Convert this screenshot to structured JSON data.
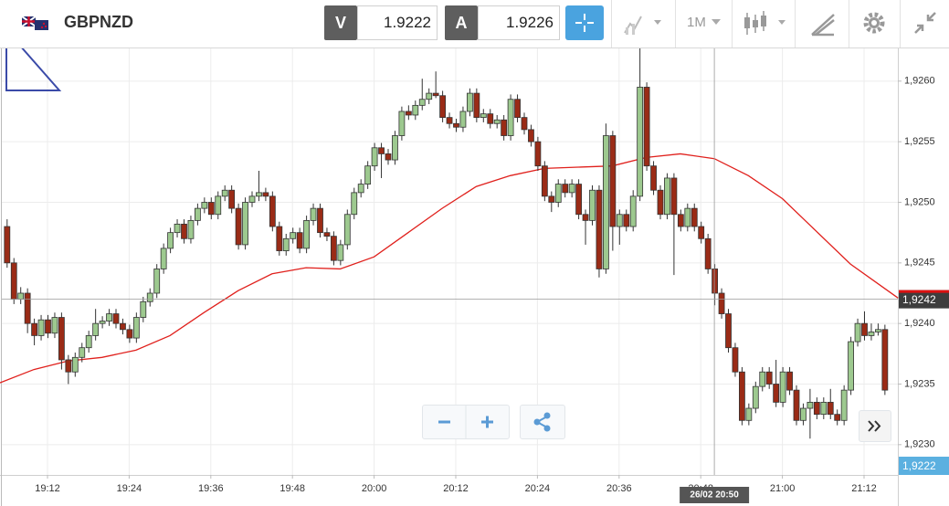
{
  "header": {
    "symbol": "GBPNZD",
    "sell_label": "V",
    "sell_price": "1.9222",
    "buy_label": "A",
    "buy_price": "1.9226",
    "timeframe": "1M"
  },
  "chart_data": {
    "type": "candlestick",
    "up_color": "#9dc98f",
    "down_color": "#9a2b16",
    "x": [
      "19:06",
      "19:07",
      "19:08",
      "19:09",
      "19:10",
      "19:11",
      "19:12",
      "19:13",
      "19:14",
      "19:15",
      "19:16",
      "19:17",
      "19:18",
      "19:19",
      "19:20",
      "19:21",
      "19:22",
      "19:23",
      "19:24",
      "19:25",
      "19:26",
      "19:27",
      "19:28",
      "19:29",
      "19:30",
      "19:31",
      "19:32",
      "19:33",
      "19:34",
      "19:35",
      "19:36",
      "19:37",
      "19:38",
      "19:39",
      "19:40",
      "19:41",
      "19:42",
      "19:43",
      "19:44",
      "19:45",
      "19:46",
      "19:47",
      "19:48",
      "19:49",
      "19:50",
      "19:51",
      "19:52",
      "19:53",
      "19:54",
      "19:55",
      "19:56",
      "19:57",
      "19:58",
      "19:59",
      "20:00",
      "20:01",
      "20:02",
      "20:03",
      "20:04",
      "20:05",
      "20:06",
      "20:07",
      "20:08",
      "20:09",
      "20:10",
      "20:11",
      "20:12",
      "20:13",
      "20:14",
      "20:15",
      "20:16",
      "20:17",
      "20:18",
      "20:19",
      "20:20",
      "20:21",
      "20:22",
      "20:23",
      "20:24",
      "20:25",
      "20:26",
      "20:27",
      "20:28",
      "20:29",
      "20:30",
      "20:31",
      "20:32",
      "20:33",
      "20:34",
      "20:35",
      "20:36",
      "20:37",
      "20:38",
      "20:39",
      "20:40",
      "20:41",
      "20:42",
      "20:43",
      "20:44",
      "20:45",
      "20:46",
      "20:47",
      "20:48",
      "20:49",
      "20:50",
      "20:51",
      "20:52",
      "20:53",
      "20:54",
      "20:55",
      "20:56",
      "20:57",
      "20:58",
      "20:59",
      "21:00",
      "21:01",
      "21:02",
      "21:03",
      "21:04",
      "21:05",
      "21:06",
      "21:07",
      "21:08",
      "21:09",
      "21:10",
      "21:11",
      "21:12",
      "21:13",
      "21:14",
      "21:15"
    ],
    "open": [
      1.9248,
      1.9245,
      1.9242,
      1.92425,
      1.924,
      1.9239,
      1.92403,
      1.92392,
      1.92405,
      1.9237,
      1.9236,
      1.92372,
      1.9238,
      1.9239,
      1.924,
      1.92402,
      1.92408,
      1.924,
      1.92395,
      1.92388,
      1.92405,
      1.92418,
      1.92425,
      1.92445,
      1.92462,
      1.92475,
      1.92482,
      1.9247,
      1.92485,
      1.92495,
      1.925,
      1.9249,
      1.92505,
      1.9251,
      1.92495,
      1.92465,
      1.925,
      1.92505,
      1.92508,
      1.92505,
      1.9248,
      1.9246,
      1.9247,
      1.92475,
      1.92462,
      1.92485,
      1.92495,
      1.92475,
      1.92472,
      1.92452,
      1.92465,
      1.9249,
      1.92508,
      1.92515,
      1.9253,
      1.92545,
      1.9254,
      1.92535,
      1.92555,
      1.92575,
      1.92572,
      1.9258,
      1.92585,
      1.9259,
      1.92588,
      1.9257,
      1.92565,
      1.92562,
      1.92575,
      1.9259,
      1.9257,
      1.92573,
      1.92565,
      1.92568,
      1.92555,
      1.92585,
      1.9257,
      1.9256,
      1.9255,
      1.9253,
      1.92505,
      1.925,
      1.92515,
      1.92508,
      1.92515,
      1.9249,
      1.92485,
      1.9251,
      1.92445,
      1.92555,
      1.9248,
      1.9249,
      1.9248,
      1.92505,
      1.92595,
      1.9253,
      1.9251,
      1.9249,
      1.9252,
      1.9249,
      1.9248,
      1.92495,
      1.9248,
      1.9247,
      1.92445,
      1.92425,
      1.92408,
      1.9238,
      1.9236,
      1.9232,
      1.9233,
      1.92348,
      1.9236,
      1.9235,
      1.92335,
      1.9236,
      1.92345,
      1.9232,
      1.9233,
      1.92335,
      1.92325,
      1.92335,
      1.92325,
      1.9232,
      1.92345,
      1.92385,
      1.924,
      1.9239,
      1.92393,
      1.92395
    ],
    "high": [
      1.92486,
      1.92454,
      1.9243,
      1.92429,
      1.92404,
      1.92407,
      1.92407,
      1.92409,
      1.92409,
      1.92374,
      1.92376,
      1.92384,
      1.92394,
      1.92412,
      1.92406,
      1.92412,
      1.92412,
      1.92404,
      1.92399,
      1.92409,
      1.92422,
      1.92429,
      1.92449,
      1.92466,
      1.92479,
      1.92486,
      1.92486,
      1.92489,
      1.92499,
      1.92504,
      1.92504,
      1.92509,
      1.92514,
      1.92514,
      1.92499,
      1.92504,
      1.92509,
      1.92526,
      1.92512,
      1.92509,
      1.92484,
      1.92474,
      1.92479,
      1.92479,
      1.92489,
      1.92499,
      1.92499,
      1.92479,
      1.92476,
      1.92469,
      1.92494,
      1.92512,
      1.92519,
      1.92534,
      1.92549,
      1.92549,
      1.92544,
      1.92559,
      1.92579,
      1.9258,
      1.92584,
      1.92602,
      1.92594,
      1.92608,
      1.92592,
      1.92574,
      1.92569,
      1.92579,
      1.92594,
      1.92594,
      1.92577,
      1.92577,
      1.92572,
      1.92572,
      1.92589,
      1.92589,
      1.92574,
      1.92564,
      1.92554,
      1.92534,
      1.92509,
      1.92519,
      1.92519,
      1.92519,
      1.92519,
      1.92494,
      1.92514,
      1.92514,
      1.92565,
      1.92559,
      1.92494,
      1.92494,
      1.9251,
      1.92628,
      1.92599,
      1.92534,
      1.92514,
      1.92524,
      1.92524,
      1.92494,
      1.92499,
      1.92499,
      1.92484,
      1.92474,
      1.92449,
      1.92429,
      1.92412,
      1.92384,
      1.92364,
      1.92334,
      1.92352,
      1.92364,
      1.92364,
      1.9237,
      1.92364,
      1.92364,
      1.92349,
      1.92334,
      1.92346,
      1.92339,
      1.92339,
      1.92346,
      1.92329,
      1.92349,
      1.92389,
      1.92404,
      1.9241,
      1.924,
      1.924,
      1.92399
    ],
    "low": [
      1.92446,
      1.92416,
      1.92416,
      1.92392,
      1.92382,
      1.92386,
      1.92388,
      1.92388,
      1.92362,
      1.9235,
      1.92356,
      1.92368,
      1.92376,
      1.92386,
      1.92396,
      1.92398,
      1.92396,
      1.92391,
      1.92384,
      1.92384,
      1.92401,
      1.92414,
      1.92421,
      1.92441,
      1.92458,
      1.92471,
      1.92466,
      1.92466,
      1.92481,
      1.92491,
      1.92486,
      1.92486,
      1.92501,
      1.92491,
      1.92461,
      1.92461,
      1.92496,
      1.92501,
      1.92501,
      1.92476,
      1.92456,
      1.92456,
      1.92466,
      1.92458,
      1.92458,
      1.92481,
      1.92471,
      1.92468,
      1.92448,
      1.92448,
      1.92461,
      1.92486,
      1.92504,
      1.92511,
      1.92526,
      1.9252,
      1.92531,
      1.92531,
      1.92551,
      1.92568,
      1.92568,
      1.92576,
      1.92581,
      1.92586,
      1.92566,
      1.92561,
      1.92558,
      1.92558,
      1.92571,
      1.92566,
      1.92566,
      1.92561,
      1.92561,
      1.92551,
      1.92551,
      1.92566,
      1.92556,
      1.92546,
      1.92526,
      1.92501,
      1.92492,
      1.92496,
      1.92504,
      1.92504,
      1.92486,
      1.92465,
      1.92481,
      1.92438,
      1.92441,
      1.9246,
      1.92465,
      1.92476,
      1.92476,
      1.92501,
      1.92526,
      1.92506,
      1.92486,
      1.92486,
      1.9244,
      1.92476,
      1.92476,
      1.92476,
      1.92466,
      1.92441,
      1.92415,
      1.92404,
      1.92376,
      1.92356,
      1.92316,
      1.92316,
      1.92326,
      1.92344,
      1.92346,
      1.92331,
      1.92331,
      1.92341,
      1.92316,
      1.92316,
      1.92305,
      1.92321,
      1.92321,
      1.92321,
      1.92316,
      1.92316,
      1.92341,
      1.92381,
      1.92386,
      1.92386,
      1.9239,
      1.92341
    ],
    "close": [
      1.9245,
      1.9242,
      1.92425,
      1.924,
      1.9239,
      1.92403,
      1.92392,
      1.92405,
      1.9237,
      1.9236,
      1.92372,
      1.9238,
      1.9239,
      1.924,
      1.92402,
      1.92408,
      1.924,
      1.92395,
      1.92388,
      1.92405,
      1.92418,
      1.92425,
      1.92445,
      1.92462,
      1.92475,
      1.92482,
      1.9247,
      1.92485,
      1.92495,
      1.925,
      1.9249,
      1.92505,
      1.9251,
      1.92495,
      1.92465,
      1.925,
      1.92505,
      1.92508,
      1.92505,
      1.9248,
      1.9246,
      1.9247,
      1.92475,
      1.92462,
      1.92485,
      1.92495,
      1.92475,
      1.92472,
      1.92452,
      1.92465,
      1.9249,
      1.92508,
      1.92515,
      1.9253,
      1.92545,
      1.9254,
      1.92535,
      1.92555,
      1.92575,
      1.92572,
      1.9258,
      1.92585,
      1.9259,
      1.92588,
      1.9257,
      1.92565,
      1.92562,
      1.92575,
      1.9259,
      1.9257,
      1.92573,
      1.92565,
      1.92568,
      1.92555,
      1.92585,
      1.9257,
      1.9256,
      1.9255,
      1.9253,
      1.92505,
      1.925,
      1.92515,
      1.92508,
      1.92515,
      1.9249,
      1.92485,
      1.9251,
      1.92445,
      1.92555,
      1.9248,
      1.9249,
      1.9248,
      1.92505,
      1.92595,
      1.9253,
      1.9251,
      1.9249,
      1.9252,
      1.9249,
      1.9248,
      1.92495,
      1.9248,
      1.9247,
      1.92445,
      1.92425,
      1.92408,
      1.9238,
      1.9236,
      1.9232,
      1.9233,
      1.92348,
      1.9236,
      1.9235,
      1.92335,
      1.9236,
      1.92345,
      1.9232,
      1.9233,
      1.92335,
      1.92325,
      1.92335,
      1.92325,
      1.9232,
      1.92345,
      1.92385,
      1.924,
      1.9239,
      1.92393,
      1.92395,
      1.92345
    ],
    "series": [
      {
        "color": "#e0201c",
        "x": [
          "19:05",
          "19:10",
          "19:15",
          "19:20",
          "19:25",
          "19:30",
          "19:35",
          "19:40",
          "19:45",
          "19:50",
          "19:55",
          "20:00",
          "20:05",
          "20:10",
          "20:15",
          "20:20",
          "20:25",
          "20:30",
          "20:35",
          "20:40",
          "20:45",
          "20:50",
          "20:55",
          "21:00",
          "21:05",
          "21:10",
          "21:15",
          "21:17"
        ],
        "values": [
          1.92351,
          1.92362,
          1.92369,
          1.92372,
          1.92378,
          1.9239,
          1.92409,
          1.92427,
          1.92441,
          1.92446,
          1.92445,
          1.92455,
          1.92475,
          1.92495,
          1.92513,
          1.92522,
          1.92528,
          1.92529,
          1.9253,
          1.92537,
          1.9254,
          1.92536,
          1.92522,
          1.92503,
          1.92476,
          1.92449,
          1.92429,
          1.92421
        ]
      }
    ],
    "ylim": [
      1.92275,
      1.92627
    ],
    "yticks": [
      {
        "value": 1.923,
        "label": "1,9230"
      },
      {
        "value": 1.9235,
        "label": "1,9235"
      },
      {
        "value": 1.924,
        "label": "1,9240"
      },
      {
        "value": 1.9245,
        "label": "1,9245"
      },
      {
        "value": 1.925,
        "label": "1,9250"
      },
      {
        "value": 1.9255,
        "label": "1,9255"
      },
      {
        "value": 1.926,
        "label": "1,9260"
      }
    ],
    "xticks": [
      "19:12",
      "19:24",
      "19:36",
      "19:48",
      "20:00",
      "20:12",
      "20:24",
      "20:36",
      "20:48",
      "21:00",
      "21:12"
    ],
    "grid": true,
    "last_price": {
      "value": 1.9242,
      "label": "1,9242"
    },
    "bid_price": {
      "value": 1.9222,
      "label": "1,9222"
    },
    "crosshair_label": "26/02 20:50"
  }
}
